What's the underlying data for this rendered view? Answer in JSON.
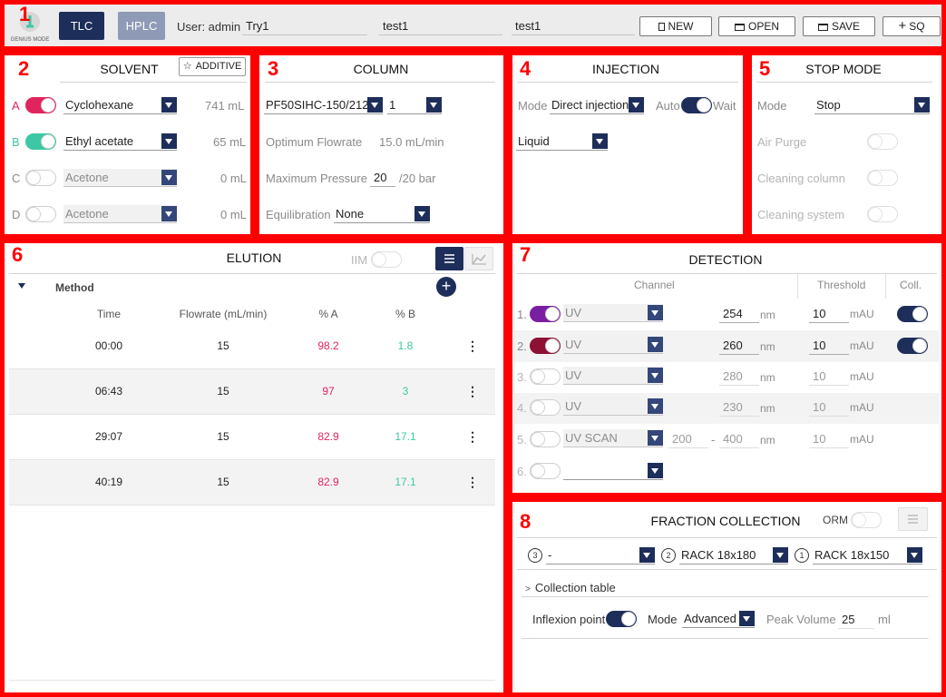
{
  "header": {
    "logo_text": "GENIUS MODE",
    "tab_tlc": "TLC",
    "tab_hplc": "HPLC",
    "user_label": "User: admin",
    "project": "Try1",
    "field2": "test1",
    "field3": "test1",
    "new_label": "NEW",
    "open_label": "OPEN",
    "save_label": "SAVE",
    "sq_label": "SQ"
  },
  "markers": [
    "1",
    "2",
    "3",
    "4",
    "5",
    "6",
    "7",
    "8"
  ],
  "solvent": {
    "title": "SOLVENT",
    "additive_label": "ADDITIVE",
    "rows": [
      {
        "letter": "A",
        "name": "Cyclohexane",
        "volume": "741 mL",
        "on": true,
        "color": "#e91e63"
      },
      {
        "letter": "B",
        "name": "Ethyl acetate",
        "volume": "65 mL",
        "on": true,
        "color": "#3ec7a4"
      },
      {
        "letter": "C",
        "name": "Acetone",
        "volume": "0 mL",
        "on": false,
        "color": ""
      },
      {
        "letter": "D",
        "name": "Acetone",
        "volume": "0 mL",
        "on": false,
        "color": ""
      }
    ]
  },
  "column": {
    "title": "COLUMN",
    "model": "PF50SIHC-150/212",
    "count": "1",
    "flow_label": "Optimum Flowrate",
    "flow_value": "15.0 mL/min",
    "pressure_label": "Maximum Pressure",
    "pressure_value": "20",
    "pressure_max": "/20 bar",
    "equil_label": "Equilibration",
    "equil_value": "None"
  },
  "injection": {
    "title": "INJECTION",
    "mode_label": "Mode",
    "mode_value": "Direct injection",
    "auto_label": "Auto",
    "wait_label": "Wait",
    "type_value": "Liquid"
  },
  "stopmode": {
    "title": "STOP MODE",
    "mode_label": "Mode",
    "mode_value": "Stop",
    "air_label": "Air Purge",
    "clean_col_label": "Cleaning column",
    "clean_sys_label": "Cleaning system"
  },
  "elution": {
    "title": "ELUTION",
    "iim_label": "IIM",
    "method_label": "Method",
    "headers": {
      "time": "Time",
      "flow": "Flowrate (mL/min)",
      "a": "% A",
      "b": "% B"
    },
    "rows": [
      {
        "time": "00:00",
        "flow": "15",
        "a": "98.2",
        "b": "1.8"
      },
      {
        "time": "06:43",
        "flow": "15",
        "a": "97",
        "b": "3"
      },
      {
        "time": "29:07",
        "flow": "15",
        "a": "82.9",
        "b": "17.1"
      },
      {
        "time": "40:19",
        "flow": "15",
        "a": "82.9",
        "b": "17.1"
      }
    ],
    "kebab": "⋮"
  },
  "detection": {
    "title": "DETECTION",
    "channel_header": "Channel",
    "threshold_header": "Threshold",
    "coll_header": "Coll.",
    "nm": "nm",
    "mau": "mAU",
    "dash": "-",
    "channels": [
      {
        "idx": "1.",
        "type": "UV",
        "wl": "254",
        "thr": "10",
        "on": true,
        "color": "#7b1fa2",
        "coll": true
      },
      {
        "idx": "2.",
        "type": "UV",
        "wl": "260",
        "thr": "10",
        "on": true,
        "color": "#8e1035",
        "coll": true
      },
      {
        "idx": "3.",
        "type": "UV",
        "wl": "280",
        "thr": "10",
        "on": false,
        "color": "",
        "coll": false
      },
      {
        "idx": "4.",
        "type": "UV",
        "wl": "230",
        "thr": "10",
        "on": false,
        "color": "",
        "coll": false
      },
      {
        "idx": "5.",
        "type": "UV SCAN",
        "wl_from": "200",
        "wl": "400",
        "thr": "10",
        "on": false,
        "color": "",
        "coll": false
      },
      {
        "idx": "6.",
        "type": "",
        "wl": "",
        "thr": "",
        "on": false,
        "color": "",
        "coll": false
      }
    ]
  },
  "fraction": {
    "title": "FRACTION COLLECTION",
    "orm_label": "ORM",
    "racks": [
      {
        "num": "3",
        "value": "-"
      },
      {
        "num": "2",
        "value": "RACK 18x180"
      },
      {
        "num": "1",
        "value": "RACK 18x150"
      }
    ],
    "collection_table": "Collection table",
    "chevron": ">",
    "inflexion_label": "Inflexion point",
    "mode_label": "Mode",
    "mode_value": "Advanced",
    "peak_label": "Peak Volume",
    "peak_value": "25",
    "peak_unit": "ml"
  },
  "colors": {
    "navy": "#1d2e5a",
    "red_a": "#e0245e",
    "green_b": "#3ec7a4",
    "marker_red": "#ff0000"
  }
}
